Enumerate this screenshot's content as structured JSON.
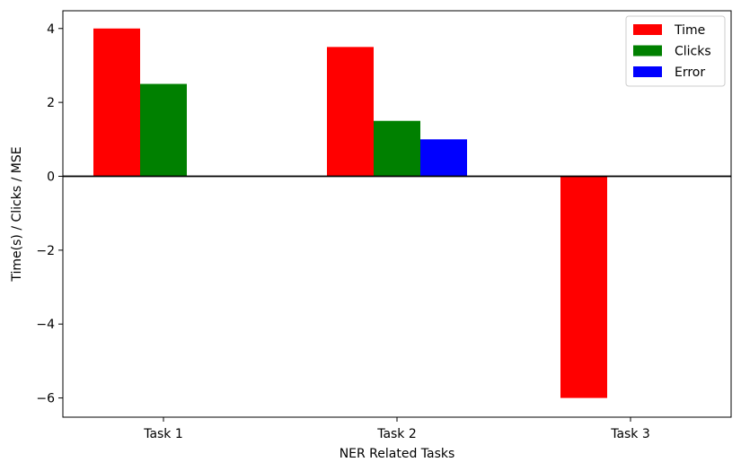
{
  "chart_data": {
    "type": "bar",
    "title": "",
    "xlabel": "NER Related Tasks",
    "ylabel": "Time(s) / Clicks / MSE",
    "categories": [
      "Task 1",
      "Task 2",
      "Task 3"
    ],
    "series": [
      {
        "name": "Time",
        "color": "#ff0000",
        "values": [
          4.0,
          3.5,
          -6.0
        ]
      },
      {
        "name": "Clicks",
        "color": "#008000",
        "values": [
          2.5,
          1.5,
          0.0
        ]
      },
      {
        "name": "Error",
        "color": "#0000ff",
        "values": [
          0.0,
          1.0,
          0.0
        ]
      }
    ],
    "ylim": [
      -6.52,
      4.48
    ],
    "yticks": [
      4,
      2,
      0,
      -2,
      -4,
      -6
    ],
    "ytick_labels": [
      "4",
      "2",
      "0",
      "−2",
      "−4",
      "−6"
    ],
    "zero_line": true,
    "grid": false,
    "legend_position": "top-right"
  }
}
